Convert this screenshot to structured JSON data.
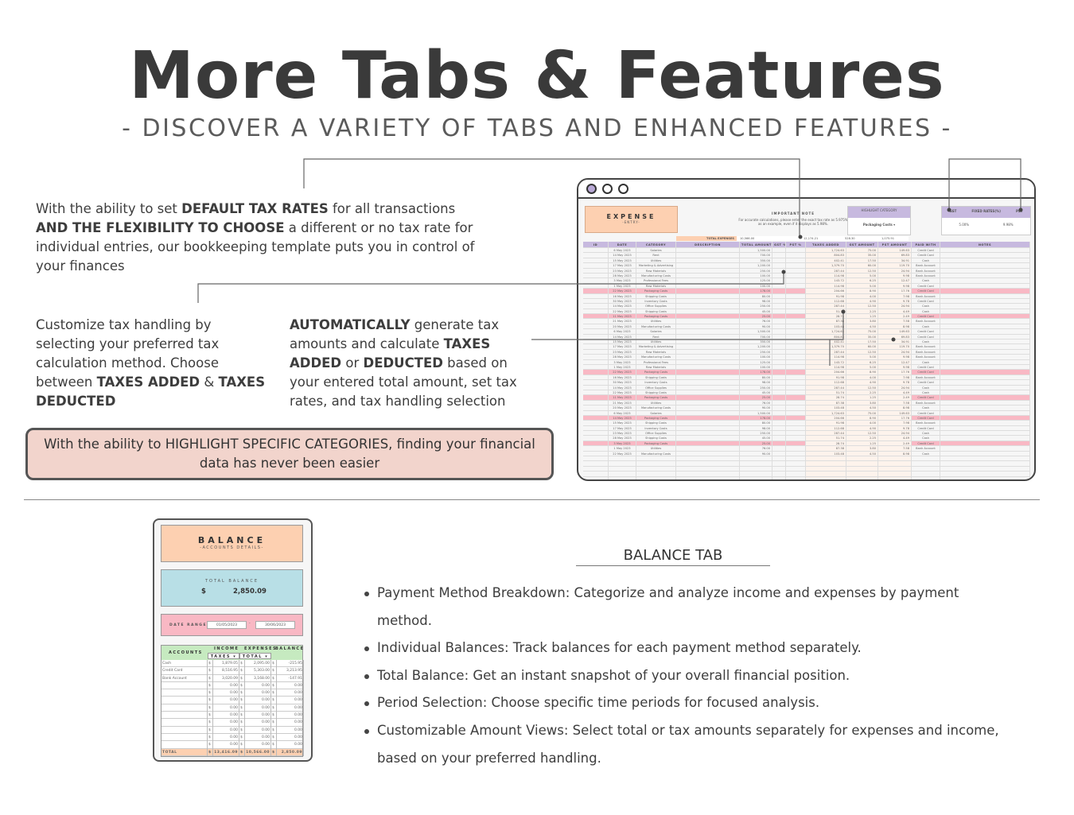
{
  "header": {
    "title": "More Tabs & Features",
    "subtitle": "- DISCOVER A VARIETY OF TABS AND ENHANCED FEATURES -"
  },
  "callouts": {
    "tax_rates": [
      "With the ability to set ",
      "DEFAULT TAX RATES",
      " for all transactions ",
      "AND THE FLEXIBILITY TO CHOOSE",
      " a different or no tax rate for individual entries, our bookkeeping template puts you in control of your finances"
    ],
    "tax_handling": [
      "Customize tax handling by selecting your preferred tax calculation method. Choose between ",
      "TAXES ADDED",
      " & ",
      "TAXES DEDUCTED"
    ],
    "auto_tax": [
      "AUTOMATICALLY",
      " generate tax amounts and calculate ",
      "TAXES ADDED",
      " or ",
      "DEDUCTED",
      " based on your entered total amount, set tax rates, and tax handling selection"
    ],
    "highlight": "With the ability to HIGHLIGHT SPECIFIC CATEGORIES, finding your financial data has never been easier"
  },
  "expense_sheet": {
    "title": "EXPENSE",
    "subtitle": "-ENTRY-",
    "note_title": "IMPORTANT NOTE",
    "note_text": "For accurate calculations, please enter the exact tax rate as 5.975% as an example, even if it displays as 5.98%.",
    "highlight_label": "HIGHLIGHT CATEGORY",
    "highlight_value": "Packaging Costs",
    "rates": {
      "gst_label": "GST",
      "fixed_label": "FIXED RATES(%)",
      "pst_label": "PST",
      "gst": "5.00%",
      "pst": "9.98%"
    },
    "summary": {
      "label": "TOTAL EXPENSES",
      "total": "10,566.00",
      "taxes": "12,174.21",
      "gst": "528.30",
      "pst": "1,075.91"
    },
    "columns": [
      "ID",
      "DATE",
      "CATEGORY",
      "DESCRIPTION",
      "TOTAL AMOUNT",
      "GST %",
      "PST %",
      "TAXES ADDED",
      "GST AMOUNT",
      "PST AMOUNT",
      "PAID WITH",
      "NOTES"
    ],
    "highlight_color": "#f9b8c4",
    "rows": [
      [
        "6 May 2023",
        "Salaries",
        "1,500.00",
        "1,724.63",
        "75.00",
        "149.63",
        "Credit Card",
        0
      ],
      [
        "14 May 2023",
        "Rent",
        "700.00",
        "804.83",
        "35.00",
        "69.83",
        "Credit Card",
        0
      ],
      [
        "15 May 2023",
        "Utilities",
        "350.00",
        "402.41",
        "17.50",
        "34.91",
        "Cash",
        0
      ],
      [
        "17 May 2023",
        "Marketing & Advertising",
        "1,200.00",
        "1,379.70",
        "60.00",
        "119.70",
        "Bank Account",
        0
      ],
      [
        "23 May 2023",
        "Raw Materials",
        "250.00",
        "287.44",
        "12.50",
        "24.94",
        "Bank Account",
        0
      ],
      [
        "28 May 2023",
        "Manufacturing Costs",
        "100.00",
        "114.98",
        "5.00",
        "9.98",
        "Bank Account",
        0
      ],
      [
        "3 May 2023",
        "Professional Fees",
        "125.00",
        "143.72",
        "6.25",
        "12.47",
        "Cash",
        0
      ],
      [
        "1 May 2023",
        "Raw Materials",
        "100.00",
        "114.98",
        "5.00",
        "9.98",
        "Credit Card",
        0
      ],
      [
        "22 May 2023",
        "Packaging Costs",
        "178.00",
        "204.66",
        "8.90",
        "17.76",
        "Credit Card",
        1
      ],
      [
        "16 May 2023",
        "Shipping Costs",
        "80.00",
        "91.98",
        "4.00",
        "7.98",
        "Bank Account",
        0
      ],
      [
        "30 May 2023",
        "Inventory Costs",
        "98.00",
        "112.68",
        "4.90",
        "9.78",
        "Credit Card",
        0
      ],
      [
        "14 May 2023",
        "Office Supplies",
        "250.00",
        "287.44",
        "12.50",
        "24.94",
        "Cash",
        0
      ],
      [
        "22 May 2023",
        "Shipping Costs",
        "45.00",
        "51.74",
        "2.25",
        "4.49",
        "Cash",
        0
      ],
      [
        "11 May 2023",
        "Packaging Costs",
        "25.00",
        "28.74",
        "1.25",
        "2.49",
        "Credit Card",
        1
      ],
      [
        "21 May 2023",
        "Utilities",
        "76.00",
        "87.38",
        "3.80",
        "7.58",
        "Bank Account",
        0
      ],
      [
        "20 May 2023",
        "Manufacturing Costs",
        "90.00",
        "103.48",
        "4.50",
        "8.98",
        "Cash",
        0
      ],
      [
        "6 May 2023",
        "Salaries",
        "1,500.00",
        "1,724.63",
        "75.00",
        "149.63",
        "Credit Card",
        0
      ],
      [
        "14 May 2023",
        "Rent",
        "700.00",
        "804.83",
        "35.00",
        "69.83",
        "Credit Card",
        0
      ],
      [
        "15 May 2023",
        "Utilities",
        "350.00",
        "402.41",
        "17.50",
        "34.91",
        "Cash",
        0
      ],
      [
        "17 May 2023",
        "Marketing & Advertising",
        "1,200.00",
        "1,379.70",
        "60.00",
        "119.70",
        "Bank Account",
        0
      ],
      [
        "23 May 2023",
        "Raw Materials",
        "250.00",
        "287.44",
        "12.50",
        "24.94",
        "Bank Account",
        0
      ],
      [
        "28 May 2023",
        "Manufacturing Costs",
        "100.00",
        "114.98",
        "5.00",
        "9.98",
        "Bank Account",
        0
      ],
      [
        "3 May 2023",
        "Professional Fees",
        "125.00",
        "143.72",
        "6.25",
        "12.47",
        "Cash",
        0
      ],
      [
        "1 May 2023",
        "Raw Materials",
        "100.00",
        "114.98",
        "5.00",
        "9.98",
        "Credit Card",
        0
      ],
      [
        "22 May 2023",
        "Packaging Costs",
        "178.00",
        "204.66",
        "8.90",
        "17.76",
        "Credit Card",
        1
      ],
      [
        "16 May 2023",
        "Shipping Costs",
        "80.00",
        "91.98",
        "4.00",
        "7.98",
        "Bank Account",
        0
      ],
      [
        "30 May 2023",
        "Inventory Costs",
        "98.00",
        "112.68",
        "4.90",
        "9.78",
        "Credit Card",
        0
      ],
      [
        "14 May 2023",
        "Office Supplies",
        "250.00",
        "287.44",
        "12.50",
        "24.94",
        "Cash",
        0
      ],
      [
        "22 May 2023",
        "Shipping Costs",
        "45.00",
        "51.74",
        "2.25",
        "4.49",
        "Cash",
        0
      ],
      [
        "11 May 2023",
        "Packaging Costs",
        "25.00",
        "28.74",
        "1.25",
        "2.49",
        "Credit Card",
        1
      ],
      [
        "21 May 2023",
        "Utilities",
        "76.00",
        "87.38",
        "3.80",
        "7.58",
        "Bank Account",
        0
      ],
      [
        "20 May 2023",
        "Manufacturing Costs",
        "90.00",
        "103.48",
        "4.50",
        "8.98",
        "Cash",
        0
      ],
      [
        "6 May 2023",
        "Salaries",
        "1,500.00",
        "1,724.63",
        "75.00",
        "149.63",
        "Credit Card",
        0
      ],
      [
        "14 May 2023",
        "Packaging Costs",
        "178.00",
        "204.66",
        "8.90",
        "17.76",
        "Credit Card",
        1
      ],
      [
        "15 May 2023",
        "Shipping Costs",
        "80.00",
        "91.98",
        "4.00",
        "7.98",
        "Bank Account",
        0
      ],
      [
        "17 May 2023",
        "Inventory Costs",
        "98.00",
        "112.68",
        "4.90",
        "9.78",
        "Credit Card",
        0
      ],
      [
        "23 May 2023",
        "Office Supplies",
        "250.00",
        "287.44",
        "12.50",
        "24.94",
        "Cash",
        0
      ],
      [
        "28 May 2023",
        "Shipping Costs",
        "45.00",
        "51.74",
        "2.25",
        "4.49",
        "Cash",
        0
      ],
      [
        "3 May 2023",
        "Packaging Costs",
        "25.00",
        "28.74",
        "1.25",
        "2.49",
        "Credit Card",
        1
      ],
      [
        "1 May 2023",
        "Utilities",
        "76.00",
        "87.38",
        "3.80",
        "7.58",
        "Bank Account",
        0
      ],
      [
        "22 May 2023",
        "Manufacturing Costs",
        "90.00",
        "103.48",
        "4.50",
        "8.98",
        "Cash",
        0
      ]
    ]
  },
  "balance_sheet": {
    "title": "BALANCE",
    "subtitle": "-ACCOUNTS DETAILS-",
    "total_label": "TOTAL BALANCE",
    "currency": "$",
    "total": "2,850.09",
    "date_label": "DATE RANGE",
    "date_from": "01/05/2023",
    "date_sep": "-",
    "date_to": "30/06/2023",
    "headers": {
      "accounts": "ACCOUNTS",
      "income": "INCOME",
      "expenses": "EXPENSES",
      "balance": "BALANCE",
      "income_mode": "TAXES",
      "expense_mode": "TOTAL"
    },
    "rows": [
      [
        "Cash",
        "1,879.05",
        "2,095.00",
        "-215.95"
      ],
      [
        "Credit Card",
        "8,516.95",
        "5,303.00",
        "3,213.95"
      ],
      [
        "Bank Account",
        "3,020.09",
        "3,168.00",
        "-147.91"
      ],
      [
        "",
        "0.00",
        "0.00",
        "0.00"
      ],
      [
        "",
        "0.00",
        "0.00",
        "0.00"
      ],
      [
        "",
        "0.00",
        "0.00",
        "0.00"
      ],
      [
        "",
        "0.00",
        "0.00",
        "0.00"
      ],
      [
        "",
        "0.00",
        "0.00",
        "0.00"
      ],
      [
        "",
        "0.00",
        "0.00",
        "0.00"
      ],
      [
        "",
        "0.00",
        "0.00",
        "0.00"
      ],
      [
        "",
        "0.00",
        "0.00",
        "0.00"
      ],
      [
        "",
        "0.00",
        "0.00",
        "0.00"
      ]
    ],
    "total_row": [
      "TOTAL",
      "13,416.09",
      "10,566.00",
      "2,850.09"
    ]
  },
  "balance_tab": {
    "title": "BALANCE TAB",
    "bullets": [
      "Payment Method Breakdown: Categorize and analyze income and expenses by payment method.",
      "Individual Balances: Track balances for each payment method separately.",
      "Total Balance: Get an instant snapshot of your overall financial position.",
      "Period Selection: Choose specific time periods for focused analysis.",
      "Customizable Amount Views: Select total or tax amounts separately for expenses and income, based on your preferred handling."
    ]
  }
}
